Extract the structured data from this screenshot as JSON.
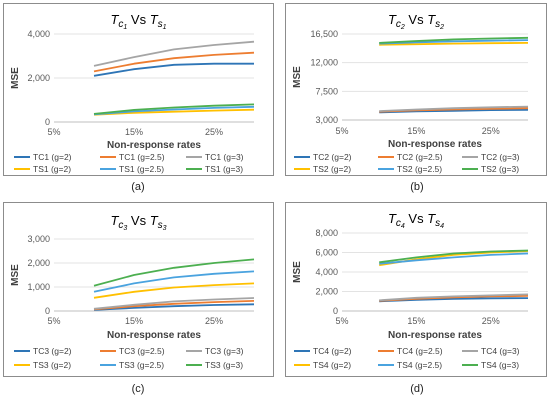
{
  "chart_data": [
    {
      "type": "line",
      "caption": "(a)",
      "title_main": "T",
      "title_sub1": "c",
      "title_sub2": "1",
      "title_vs": " Vs ",
      "title_main2": "T",
      "title_sub3": "s",
      "title_sub4": "1",
      "xlabel": "Non-response rates",
      "ylabel": "MSE",
      "x_ticks": [
        "5%",
        "15%",
        "25%"
      ],
      "y_ticks": [
        0,
        2000,
        4000
      ],
      "y_tick_labels": [
        "0",
        "2,000",
        "4,000"
      ],
      "ylim": [
        0,
        4000
      ],
      "x": [
        10,
        15,
        20,
        25,
        30
      ],
      "xlim": [
        5,
        30
      ],
      "legend_position": "bottom",
      "series": [
        {
          "name": "TC1 (g=2)",
          "color": "#2e75b6",
          "values": [
            2100,
            2400,
            2600,
            2650,
            2650
          ]
        },
        {
          "name": "TC1 (g=2.5)",
          "color": "#ed7d31",
          "values": [
            2300,
            2650,
            2900,
            3050,
            3150
          ]
        },
        {
          "name": "TC1 (g=3)",
          "color": "#a5a5a5",
          "values": [
            2550,
            2950,
            3300,
            3500,
            3650
          ]
        },
        {
          "name": "TS1 (g=2)",
          "color": "#ffc000",
          "values": [
            330,
            420,
            470,
            520,
            560
          ]
        },
        {
          "name": "TS1 (g=2.5)",
          "color": "#4aa3df",
          "values": [
            350,
            480,
            570,
            640,
            690
          ]
        },
        {
          "name": "TS1 (g=3)",
          "color": "#4caf50",
          "values": [
            370,
            550,
            660,
            740,
            800
          ]
        }
      ]
    },
    {
      "type": "line",
      "caption": "(b)",
      "title_main": "T",
      "title_sub1": "c",
      "title_sub2": "2",
      "title_vs": " Vs ",
      "title_main2": "T",
      "title_sub3": "s",
      "title_sub4": "2",
      "xlabel": "Non-response rates",
      "ylabel": "MSE",
      "x_ticks": [
        "5%",
        "15%",
        "25%"
      ],
      "y_ticks": [
        3000,
        7500,
        12000,
        16500
      ],
      "y_tick_labels": [
        "3,000",
        "7,500",
        "12,000",
        "16,500"
      ],
      "ylim": [
        3000,
        16500
      ],
      "x": [
        10,
        15,
        20,
        25,
        30
      ],
      "xlim": [
        5,
        30
      ],
      "legend_position": "bottom",
      "series": [
        {
          "name": "TC2 (g=2)",
          "color": "#2e75b6",
          "values": [
            4200,
            4350,
            4450,
            4550,
            4600
          ]
        },
        {
          "name": "TC2 (g=2.5)",
          "color": "#ed7d31",
          "values": [
            4300,
            4500,
            4650,
            4750,
            4850
          ]
        },
        {
          "name": "TC2 (g=3)",
          "color": "#a5a5a5",
          "values": [
            4400,
            4650,
            4850,
            5000,
            5100
          ]
        },
        {
          "name": "TS2 (g=2)",
          "color": "#ffc000",
          "values": [
            14800,
            14900,
            15000,
            15050,
            15100
          ]
        },
        {
          "name": "TS2 (g=2.5)",
          "color": "#4aa3df",
          "values": [
            15000,
            15200,
            15350,
            15450,
            15550
          ]
        },
        {
          "name": "TS2 (g=3)",
          "color": "#4caf50",
          "values": [
            15100,
            15400,
            15650,
            15800,
            15900
          ]
        }
      ]
    },
    {
      "type": "line",
      "caption": "(c)",
      "title_main": "T",
      "title_sub1": "c",
      "title_sub2": "3",
      "title_vs": " Vs ",
      "title_main2": "T",
      "title_sub3": "s",
      "title_sub4": "3",
      "xlabel": "Non-response rates",
      "ylabel": "MSE",
      "x_ticks": [
        "5%",
        "15%",
        "25%"
      ],
      "y_ticks": [
        0,
        1000,
        2000,
        3000
      ],
      "y_tick_labels": [
        "0",
        "1,000",
        "2,000",
        "3,000"
      ],
      "ylim": [
        0,
        3000
      ],
      "x": [
        10,
        15,
        20,
        25,
        30
      ],
      "xlim": [
        5,
        30
      ],
      "legend_position": "bottom",
      "series": [
        {
          "name": "TC3 (g=2)",
          "color": "#2e75b6",
          "values": [
            50,
            130,
            200,
            250,
            280
          ]
        },
        {
          "name": "TC3 (g=2.5)",
          "color": "#ed7d31",
          "values": [
            70,
            200,
            300,
            370,
            420
          ]
        },
        {
          "name": "TC3 (g=3)",
          "color": "#a5a5a5",
          "values": [
            90,
            260,
            400,
            480,
            540
          ]
        },
        {
          "name": "TS3 (g=2)",
          "color": "#ffc000",
          "values": [
            550,
            800,
            980,
            1080,
            1150
          ]
        },
        {
          "name": "TS3 (g=2.5)",
          "color": "#4aa3df",
          "values": [
            800,
            1150,
            1400,
            1550,
            1650
          ]
        },
        {
          "name": "TS3 (g=3)",
          "color": "#4caf50",
          "values": [
            1050,
            1500,
            1800,
            2000,
            2150
          ]
        }
      ]
    },
    {
      "type": "line",
      "caption": "(d)",
      "title_main": "T",
      "title_sub1": "c",
      "title_sub2": "4",
      "title_vs": " Vs ",
      "title_main2": "T",
      "title_sub3": "s",
      "title_sub4": "4",
      "xlabel": "Non-response rates",
      "ylabel": "MSE",
      "x_ticks": [
        "5%",
        "15%",
        "25%"
      ],
      "y_ticks": [
        0,
        2000,
        4000,
        6000,
        8000
      ],
      "y_tick_labels": [
        "0",
        "2,000",
        "4,000",
        "6,000",
        "8,000"
      ],
      "ylim": [
        0,
        8000
      ],
      "x": [
        10,
        15,
        20,
        25,
        30
      ],
      "xlim": [
        5,
        30
      ],
      "legend_position": "bottom",
      "series": [
        {
          "name": "TC4 (g=2)",
          "color": "#2e75b6",
          "values": [
            1000,
            1150,
            1250,
            1300,
            1320
          ]
        },
        {
          "name": "TC4 (g=2.5)",
          "color": "#ed7d31",
          "values": [
            1050,
            1250,
            1400,
            1500,
            1550
          ]
        },
        {
          "name": "TC4 (g=3)",
          "color": "#a5a5a5",
          "values": [
            1100,
            1350,
            1500,
            1600,
            1700
          ]
        },
        {
          "name": "TS4 (g=2)",
          "color": "#ffc000",
          "values": [
            4700,
            5300,
            5750,
            6000,
            6150
          ]
        },
        {
          "name": "TS4 (g=2.5)",
          "color": "#4aa3df",
          "values": [
            4850,
            5200,
            5500,
            5750,
            5900
          ]
        },
        {
          "name": "TS4 (g=3)",
          "color": "#4caf50",
          "values": [
            5000,
            5500,
            5900,
            6100,
            6200
          ]
        }
      ]
    }
  ]
}
